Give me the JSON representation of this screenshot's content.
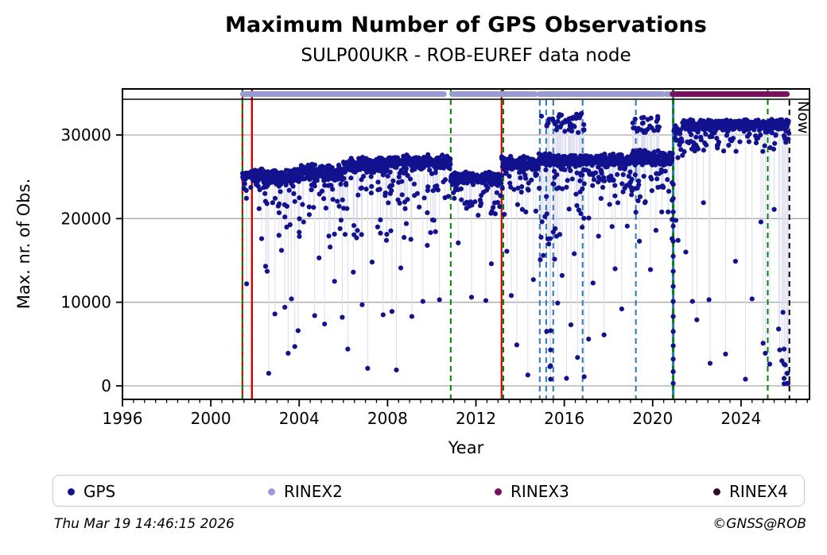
{
  "footer": {
    "timestamp": "Thu Mar 19 14:46:15 2026",
    "credit": "©GNSS@ROB"
  },
  "legend": {
    "items": [
      {
        "label": "GPS",
        "color": "#14148f"
      },
      {
        "label": "RINEX2",
        "color": "#9b9bd3"
      },
      {
        "label": "RINEX3",
        "color": "#7a105f"
      },
      {
        "label": "RINEX4",
        "color": "#2e0f2a"
      }
    ]
  },
  "chart_data": {
    "type": "scatter",
    "title": "Maximum Number of GPS Observations",
    "subtitle": "SULP00UKR - ROB-EUREF data node",
    "xlabel": "Year",
    "ylabel": "Max. nr. of Obs.",
    "now_label": "Now",
    "xlim": [
      1996,
      2027.1
    ],
    "ylim": [
      -1700,
      34300
    ],
    "xticks": [
      1996,
      2000,
      2004,
      2008,
      2012,
      2016,
      2020,
      2024
    ],
    "xtick_minor_step": 0.5,
    "yticks": [
      0,
      10000,
      20000,
      30000
    ],
    "grid": "horizontal",
    "colors": {
      "point": "#12128f",
      "stem": "#dcdcf0",
      "grid": "#a9a9a9",
      "frame": "#000000",
      "green": "#007f00",
      "red": "#d40000",
      "blue": "#2878b8",
      "now": "#000000"
    },
    "format_timeline": {
      "rinex2": {
        "label": "RINEX2",
        "color": "#9b9bd3",
        "segments": [
          [
            2001.45,
            2010.55
          ],
          [
            2010.92,
            2014.68
          ],
          [
            2014.86,
            2020.45
          ],
          [
            2020.62,
            2020.85
          ]
        ]
      },
      "rinex3": {
        "label": "RINEX3",
        "color": "#7a105f",
        "segments": [
          [
            2020.9,
            2026.08
          ]
        ]
      }
    },
    "vlines": [
      {
        "year": 2001.43,
        "style": "dash-alt",
        "colors": [
          "#007f00",
          "#d40000"
        ],
        "width": 2.2,
        "full": true
      },
      {
        "year": 2001.86,
        "style": "solid",
        "colors": [
          "#d40000"
        ],
        "width": 2.4,
        "full": true
      },
      {
        "year": 2010.86,
        "style": "dashed",
        "colors": [
          "#007f00"
        ],
        "width": 2.0,
        "full": true
      },
      {
        "year": 2013.16,
        "style": "solid",
        "colors": [
          "#d40000"
        ],
        "width": 2.2,
        "full": true
      },
      {
        "year": 2013.24,
        "style": "dashed",
        "colors": [
          "#007f00"
        ],
        "width": 2.0,
        "full": true
      },
      {
        "year": 2014.89,
        "style": "dashed",
        "colors": [
          "#2878b8"
        ],
        "width": 2.0,
        "full": false
      },
      {
        "year": 2015.18,
        "style": "dashed",
        "colors": [
          "#2878b8"
        ],
        "width": 2.0,
        "full": false
      },
      {
        "year": 2015.5,
        "style": "dashed",
        "colors": [
          "#2878b8"
        ],
        "width": 2.0,
        "full": false
      },
      {
        "year": 2016.83,
        "style": "dashed",
        "colors": [
          "#2878b8"
        ],
        "width": 2.0,
        "full": false
      },
      {
        "year": 2019.24,
        "style": "dashed",
        "colors": [
          "#2878b8"
        ],
        "width": 2.0,
        "full": false
      },
      {
        "year": 2020.93,
        "style": "dash-alt",
        "colors": [
          "#007f00",
          "#2878b8"
        ],
        "width": 3.0,
        "full": true
      },
      {
        "year": 2025.21,
        "style": "dashed",
        "colors": [
          "#007f00"
        ],
        "width": 2.0,
        "full": true
      },
      {
        "year": 2026.19,
        "style": "dashed",
        "colors": [
          "#000000"
        ],
        "width": 2.0,
        "full": false,
        "name": "now-line"
      }
    ],
    "gps_points": {
      "band_segments": [
        [
          2001.43,
          2002.1,
          85,
          24300,
          26000
        ],
        [
          2002.1,
          2004.0,
          85,
          23700,
          26000
        ],
        [
          2004.0,
          2006.0,
          85,
          24400,
          26600
        ],
        [
          2006.0,
          2008.0,
          85,
          25300,
          27400
        ],
        [
          2008.0,
          2010.85,
          85,
          25700,
          27700
        ],
        [
          2010.85,
          2013.16,
          85,
          23900,
          25700
        ],
        [
          2013.16,
          2014.85,
          85,
          25700,
          27500
        ],
        [
          2014.85,
          2019.0,
          90,
          26100,
          27800
        ],
        [
          2019.0,
          2020.9,
          90,
          26300,
          28200
        ],
        [
          2020.95,
          2021.35,
          55,
          29000,
          31500
        ],
        [
          2021.35,
          2026.17,
          90,
          30500,
          31900
        ]
      ],
      "fill_segments": [
        [
          2002.2,
          2010.8,
          55,
          17500,
          24200,
          25300
        ],
        [
          2010.9,
          2013.1,
          14,
          20500,
          23900,
          24800
        ],
        [
          2013.2,
          2014.8,
          12,
          20500,
          25600,
          26600
        ],
        [
          2014.9,
          2017.1,
          30,
          14500,
          26000,
          27000
        ],
        [
          2017.1,
          2019.0,
          14,
          19000,
          26000,
          27000
        ],
        [
          2019.0,
          2020.9,
          16,
          20500,
          26200,
          27300
        ],
        [
          2021.4,
          2026.1,
          12,
          28700,
          30400,
          31200
        ],
        [
          2025.25,
          2026.15,
          14,
          28800,
          31600,
          31300
        ]
      ],
      "high_clusters": [
        [
          2014.95,
          2016.9,
          44,
          30200,
          32600,
          27000
        ],
        [
          2019.1,
          2020.35,
          26,
          30200,
          32300,
          27300
        ]
      ],
      "outliers": [
        [
          2001.62,
          12200
        ],
        [
          2002.3,
          17600
        ],
        [
          2002.48,
          14300
        ],
        [
          2002.55,
          13700
        ],
        [
          2002.62,
          1500
        ],
        [
          2002.9,
          8600
        ],
        [
          2003.05,
          21500
        ],
        [
          2003.2,
          16200
        ],
        [
          2003.35,
          9400
        ],
        [
          2003.5,
          3900
        ],
        [
          2003.65,
          10400
        ],
        [
          2003.8,
          4700
        ],
        [
          2003.95,
          6600
        ],
        [
          2004.2,
          19600
        ],
        [
          2004.45,
          21400
        ],
        [
          2004.7,
          8400
        ],
        [
          2004.9,
          15300
        ],
        [
          2005.15,
          7400
        ],
        [
          2005.4,
          16600
        ],
        [
          2005.6,
          12500
        ],
        [
          2005.85,
          18800
        ],
        [
          2005.95,
          8200
        ],
        [
          2006.2,
          4400
        ],
        [
          2006.45,
          13600
        ],
        [
          2006.6,
          17700
        ],
        [
          2006.85,
          9700
        ],
        [
          2007.1,
          2100
        ],
        [
          2007.3,
          14800
        ],
        [
          2007.55,
          19000
        ],
        [
          2007.8,
          8500
        ],
        [
          2007.95,
          17400
        ],
        [
          2008.2,
          8900
        ],
        [
          2008.4,
          1900
        ],
        [
          2008.6,
          14100
        ],
        [
          2008.85,
          19400
        ],
        [
          2009.1,
          8300
        ],
        [
          2009.35,
          23000
        ],
        [
          2009.6,
          10100
        ],
        [
          2009.8,
          16800
        ],
        [
          2010.1,
          19800
        ],
        [
          2010.35,
          10300
        ],
        [
          2010.6,
          22500
        ],
        [
          2011.2,
          17100
        ],
        [
          2011.5,
          21800
        ],
        [
          2011.8,
          10600
        ],
        [
          2012.1,
          20400
        ],
        [
          2012.45,
          10200
        ],
        [
          2012.7,
          14600
        ],
        [
          2012.95,
          23100
        ],
        [
          2013.4,
          16100
        ],
        [
          2013.6,
          10800
        ],
        [
          2013.85,
          4900
        ],
        [
          2014.1,
          21100
        ],
        [
          2014.35,
          1300
        ],
        [
          2014.6,
          12700
        ],
        [
          2015.05,
          15600
        ],
        [
          2015.2,
          6500
        ],
        [
          2015.35,
          2300
        ],
        [
          2015.5,
          18400
        ],
        [
          2015.7,
          9900
        ],
        [
          2015.9,
          13200
        ],
        [
          2016.1,
          900
        ],
        [
          2016.3,
          7300
        ],
        [
          2016.45,
          15800
        ],
        [
          2016.6,
          3400
        ],
        [
          2016.75,
          20600
        ],
        [
          2016.9,
          1100
        ],
        [
          2017.1,
          5600
        ],
        [
          2017.3,
          12300
        ],
        [
          2017.55,
          17900
        ],
        [
          2017.8,
          6100
        ],
        [
          2018.05,
          21700
        ],
        [
          2018.3,
          14000
        ],
        [
          2018.6,
          9200
        ],
        [
          2018.85,
          19100
        ],
        [
          2019.15,
          23600
        ],
        [
          2019.4,
          17300
        ],
        [
          2019.65,
          21900
        ],
        [
          2019.9,
          13900
        ],
        [
          2020.15,
          18600
        ],
        [
          2020.45,
          23900
        ],
        [
          2020.7,
          20800
        ],
        [
          2021.05,
          19800
        ],
        [
          2021.15,
          17400
        ],
        [
          2021.5,
          16000
        ],
        [
          2021.8,
          10100
        ],
        [
          2022.0,
          7900
        ],
        [
          2022.3,
          21900
        ],
        [
          2022.55,
          10300
        ],
        [
          2022.6,
          2700
        ],
        [
          2023.3,
          3800
        ],
        [
          2023.75,
          14900
        ],
        [
          2024.2,
          800
        ],
        [
          2024.5,
          10400
        ],
        [
          2024.9,
          19600
        ],
        [
          2025.0,
          5100
        ],
        [
          2025.1,
          3900
        ],
        [
          2025.3,
          2600
        ],
        [
          2025.5,
          21100
        ],
        [
          2025.7,
          6800
        ],
        [
          2025.75,
          4300
        ],
        [
          2025.85,
          3000
        ],
        [
          2025.9,
          8800
        ],
        [
          2026.0,
          2500
        ],
        [
          2026.1,
          1500
        ],
        [
          2026.13,
          300
        ]
      ],
      "event_streaks": [
        {
          "year": 2020.93,
          "values": [
            300,
            1700,
            3200,
            4800,
            6500,
            8300,
            10100,
            11900,
            13700,
            15500,
            17300,
            19100,
            20800,
            22400,
            24100
          ],
          "stem_to": 27500
        },
        {
          "year": 2020.88,
          "values": [
            17600,
            19900,
            22200,
            24300
          ],
          "stem_to": 27500
        },
        {
          "year": 2015.38,
          "values": [
            800,
            2400,
            4300,
            6600
          ],
          "stem_to": 27000
        },
        {
          "year": 2025.95,
          "values": [
            250,
            900,
            2600,
            4400
          ],
          "stem_to": 31200
        },
        {
          "year": 2026.08,
          "values": [
            300,
            1500
          ],
          "stem_to": 31200
        }
      ]
    }
  }
}
